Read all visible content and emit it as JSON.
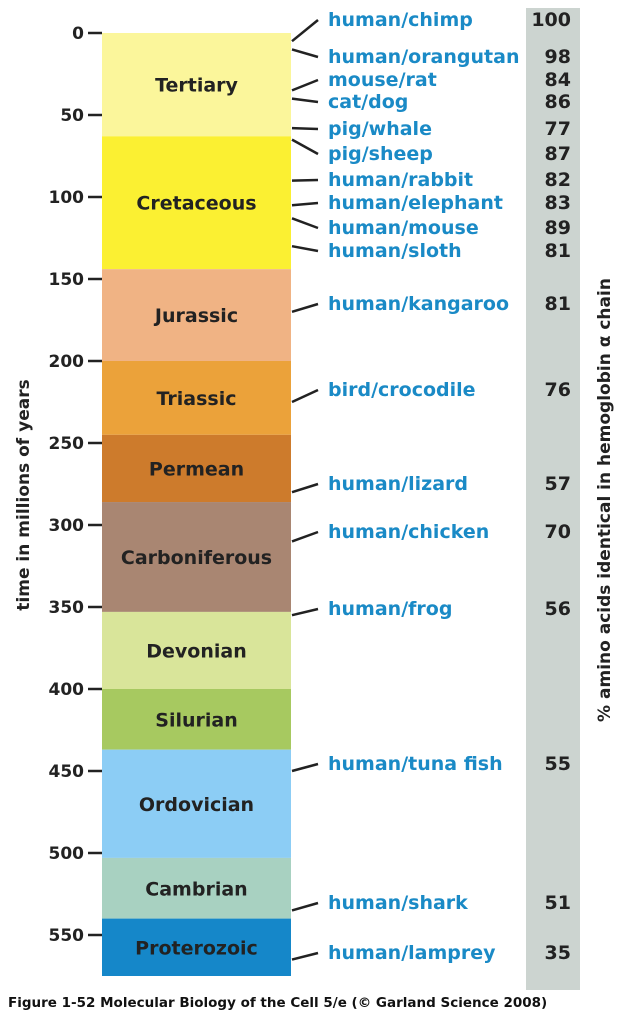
{
  "y_axis": {
    "label": "time in millions of years",
    "ticks": [
      "0",
      "50",
      "100",
      "150",
      "200",
      "250",
      "300",
      "350",
      "400",
      "450",
      "500",
      "550"
    ]
  },
  "right_axis_label": "% amino acids identical in hemoglobin α chain",
  "periods": [
    {
      "name": "Tertiary",
      "start": 0,
      "end": 63,
      "color": "#fbf69b"
    },
    {
      "name": "Cretaceous",
      "start": 63,
      "end": 144,
      "color": "#fbf032"
    },
    {
      "name": "Jurassic",
      "start": 144,
      "end": 200,
      "color": "#f0b384"
    },
    {
      "name": "Triassic",
      "start": 200,
      "end": 245,
      "color": "#eba23a"
    },
    {
      "name": "Permean",
      "start": 245,
      "end": 286,
      "color": "#cd7b2c"
    },
    {
      "name": "Carboniferous",
      "start": 286,
      "end": 353,
      "color": "#a98672"
    },
    {
      "name": "Devonian",
      "start": 353,
      "end": 400,
      "color": "#d9e59a"
    },
    {
      "name": "Silurian",
      "start": 400,
      "end": 437,
      "color": "#a7c960"
    },
    {
      "name": "Ordovician",
      "start": 437,
      "end": 503,
      "color": "#8ccdf5"
    },
    {
      "name": "Cambrian",
      "start": 503,
      "end": 540,
      "color": "#a8d1c1"
    },
    {
      "name": "Proterozoic",
      "start": 540,
      "end": 575,
      "color": "#1587c9"
    }
  ],
  "comparisons": [
    {
      "pair": "human/chimp",
      "percent": "100",
      "divergence": 5
    },
    {
      "pair": "human/orangutan",
      "percent": "98",
      "divergence": 10
    },
    {
      "pair": "mouse/rat",
      "percent": "84",
      "divergence": 35
    },
    {
      "pair": "cat/dog",
      "percent": "86",
      "divergence": 40
    },
    {
      "pair": "pig/whale",
      "percent": "77",
      "divergence": 58
    },
    {
      "pair": "pig/sheep",
      "percent": "87",
      "divergence": 65
    },
    {
      "pair": "human/rabbit",
      "percent": "82",
      "divergence": 90
    },
    {
      "pair": "human/elephant",
      "percent": "83",
      "divergence": 105
    },
    {
      "pair": "human/mouse",
      "percent": "89",
      "divergence": 113
    },
    {
      "pair": "human/sloth",
      "percent": "81",
      "divergence": 130
    },
    {
      "pair": "human/kangaroo",
      "percent": "81",
      "divergence": 170
    },
    {
      "pair": "bird/crocodile",
      "percent": "76",
      "divergence": 225
    },
    {
      "pair": "human/lizard",
      "percent": "57",
      "divergence": 280
    },
    {
      "pair": "human/chicken",
      "percent": "70",
      "divergence": 310
    },
    {
      "pair": "human/frog",
      "percent": "56",
      "divergence": 355
    },
    {
      "pair": "human/tuna fish",
      "percent": "55",
      "divergence": 450
    },
    {
      "pair": "human/shark",
      "percent": "51",
      "divergence": 535
    },
    {
      "pair": "human/lamprey",
      "percent": "35",
      "divergence": 565
    }
  ],
  "caption": "Figure 1-52  Molecular Biology of the Cell 5/e (© Garland Science 2008)",
  "colors": {
    "label_blue": "#1a8ac6",
    "percent_column": "#ccd4d0"
  }
}
